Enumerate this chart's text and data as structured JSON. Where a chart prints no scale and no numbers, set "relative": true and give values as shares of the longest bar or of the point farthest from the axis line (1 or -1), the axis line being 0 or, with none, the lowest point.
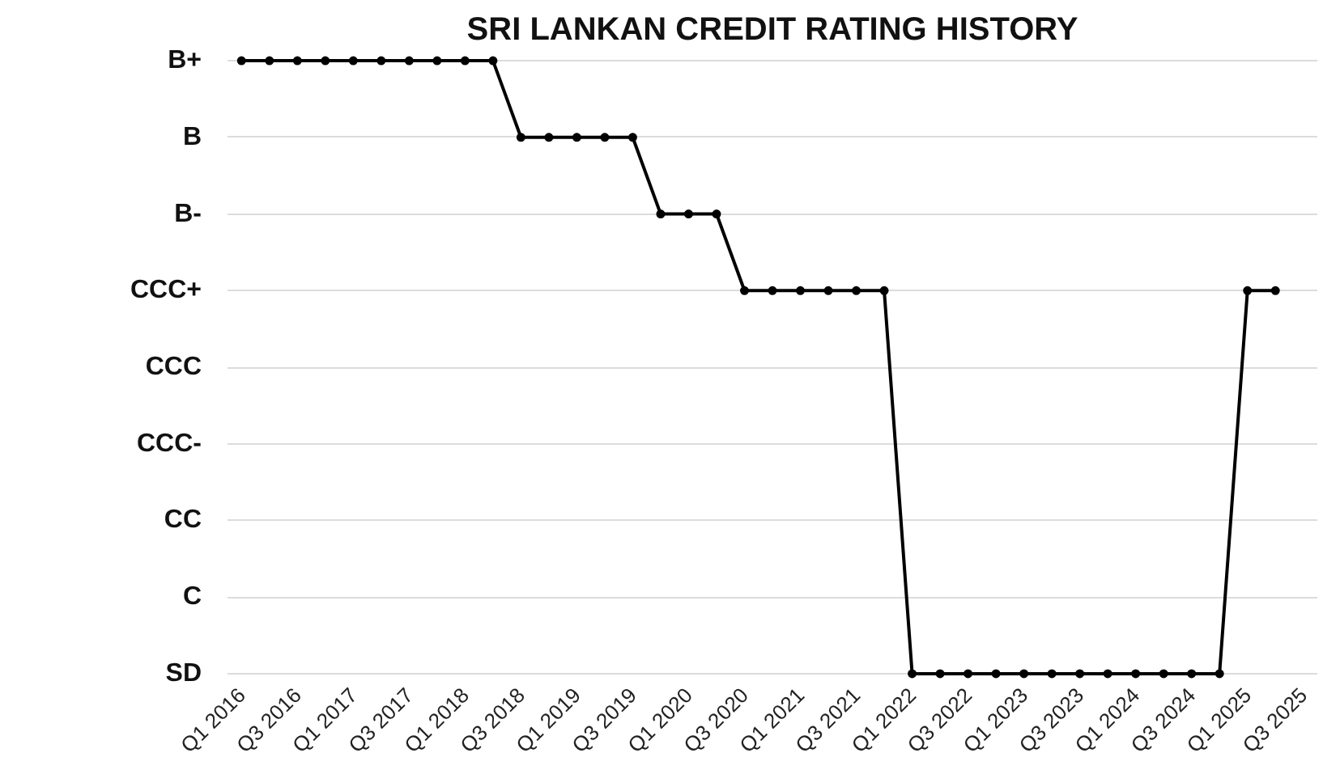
{
  "chart_data": {
    "type": "line",
    "title": "SRI LANKAN CREDIT RATING HISTORY",
    "categories": [
      "Q1 2016",
      null,
      "Q3 2016",
      null,
      "Q1 2017",
      null,
      "Q3 2017",
      null,
      "Q1 2018",
      null,
      "Q3 2018",
      null,
      "Q1 2019",
      null,
      "Q3 2019",
      null,
      "Q1 2020",
      null,
      "Q3 2020",
      null,
      "Q1 2021",
      null,
      "Q3 2021",
      null,
      "Q1 2022",
      null,
      "Q3 2022",
      null,
      "Q1 2023",
      null,
      "Q3 2023",
      null,
      "Q1 2024",
      null,
      "Q3 2024",
      null,
      "Q1 2025",
      null,
      "Q3 2025"
    ],
    "y_categories": [
      "B+",
      "B",
      "B-",
      "CCC+",
      "CCC",
      "CCC-",
      "CC",
      "C",
      "SD"
    ],
    "relative": true,
    "series": [
      {
        "color": "#000000",
        "values": [
          1,
          1,
          1,
          1,
          1,
          1,
          1,
          1,
          1,
          1,
          0.875,
          0.875,
          0.875,
          0.875,
          0.875,
          0.75,
          0.75,
          0.75,
          0.625,
          0.625,
          0.625,
          0.625,
          0.625,
          0.625,
          0,
          0,
          0,
          0,
          0,
          0,
          0,
          0,
          0,
          0,
          0,
          0,
          0.625,
          0.625,
          null
        ]
      }
    ],
    "grid": "y",
    "marker": "circle",
    "line_style": "solid"
  }
}
